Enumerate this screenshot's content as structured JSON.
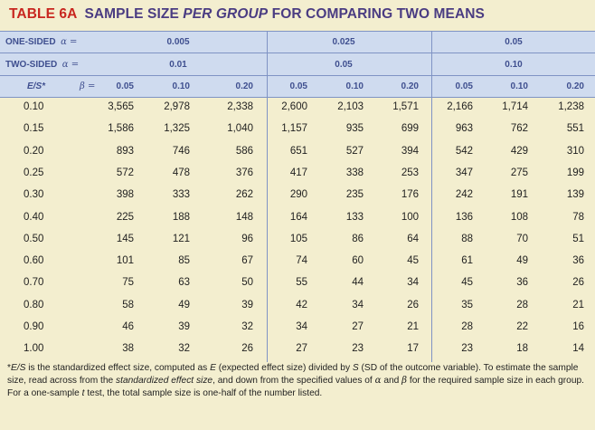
{
  "table": {
    "number": "TABLE 6A",
    "title": "SAMPLE SIZE PER GROUP FOR COMPARING TWO MEANS",
    "title_pre": "SAMPLE SIZE ",
    "title_em": "PER GROUP",
    "title_post": " FOR COMPARING TWO MEANS"
  },
  "header": {
    "one_sided_label": "ONE-SIDED",
    "two_sided_label": "TWO-SIDED",
    "alpha_symbol": "α =",
    "one_sided_values": [
      "0.005",
      "0.025",
      "0.05"
    ],
    "two_sided_values": [
      "0.01",
      "0.05",
      "0.10"
    ],
    "es_label": "E/S*",
    "beta_symbol": "β =",
    "beta_values": [
      "0.05",
      "0.10",
      "0.20",
      "0.05",
      "0.10",
      "0.20",
      "0.05",
      "0.10",
      "0.20"
    ]
  },
  "rows": [
    {
      "es": "0.10",
      "values": [
        "3,565",
        "2,978",
        "2,338",
        "2,600",
        "2,103",
        "1,571",
        "2,166",
        "1,714",
        "1,238"
      ]
    },
    {
      "es": "0.15",
      "values": [
        "1,586",
        "1,325",
        "1,040",
        "1,157",
        "935",
        "699",
        "963",
        "762",
        "551"
      ]
    },
    {
      "es": "0.20",
      "values": [
        "893",
        "746",
        "586",
        "651",
        "527",
        "394",
        "542",
        "429",
        "310"
      ]
    },
    {
      "es": "0.25",
      "values": [
        "572",
        "478",
        "376",
        "417",
        "338",
        "253",
        "347",
        "275",
        "199"
      ]
    },
    {
      "es": "0.30",
      "values": [
        "398",
        "333",
        "262",
        "290",
        "235",
        "176",
        "242",
        "191",
        "139"
      ]
    },
    {
      "es": "0.40",
      "values": [
        "225",
        "188",
        "148",
        "164",
        "133",
        "100",
        "136",
        "108",
        "78"
      ]
    },
    {
      "es": "0.50",
      "values": [
        "145",
        "121",
        "96",
        "105",
        "86",
        "64",
        "88",
        "70",
        "51"
      ]
    },
    {
      "es": "0.60",
      "values": [
        "101",
        "85",
        "67",
        "74",
        "60",
        "45",
        "61",
        "49",
        "36"
      ]
    },
    {
      "es": "0.70",
      "values": [
        "75",
        "63",
        "50",
        "55",
        "44",
        "34",
        "45",
        "36",
        "26"
      ]
    },
    {
      "es": "0.80",
      "values": [
        "58",
        "49",
        "39",
        "42",
        "34",
        "26",
        "35",
        "28",
        "21"
      ]
    },
    {
      "es": "0.90",
      "values": [
        "46",
        "39",
        "32",
        "34",
        "27",
        "21",
        "28",
        "22",
        "16"
      ]
    },
    {
      "es": "1.00",
      "values": [
        "38",
        "32",
        "26",
        "27",
        "23",
        "17",
        "23",
        "18",
        "14"
      ]
    }
  ],
  "footnote": {
    "p1": "*",
    "p2": "E/S",
    "p3": " is the standardized effect size, computed as ",
    "p4": "E",
    "p5": " (expected effect size) divided by ",
    "p6": "S",
    "p7": " (SD of the outcome variable). To estimate the sample size, read across from the ",
    "p8": "standardized effect size",
    "p9": ", and down from the specified values of ",
    "p10": "α",
    "p11": " and ",
    "p12": "β",
    "p13": " for the required sample size in each group. For a one-sample ",
    "p14": "t",
    "p15": " test, the total sample size is one-half of the number listed."
  },
  "colors": {
    "background": "#f3eecf",
    "header_band": "#cfdbef",
    "title_number": "#c8261f",
    "title_text": "#4a3c82",
    "header_text": "#3f4f8f",
    "rule": "#7f93c4"
  }
}
